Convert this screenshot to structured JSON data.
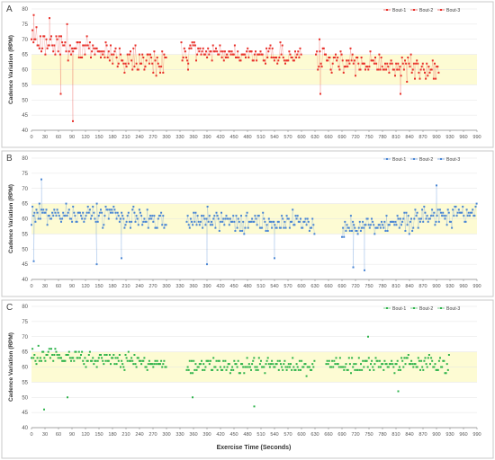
{
  "figure": {
    "shared_xlabel": "Exercise Time (Seconds)",
    "shared_ylabel": "Cadence Variation (RPM)"
  },
  "chart_data": [
    {
      "type": "scatter",
      "panel_label": "A",
      "xlim": [
        0,
        990
      ],
      "ylim": [
        40,
        80
      ],
      "xticks": [
        0,
        30,
        60,
        90,
        120,
        150,
        180,
        210,
        240,
        270,
        300,
        330,
        360,
        390,
        420,
        450,
        480,
        510,
        540,
        570,
        600,
        630,
        660,
        690,
        720,
        750,
        780,
        810,
        840,
        870,
        900,
        930,
        960,
        990
      ],
      "yticks": [
        40,
        45,
        50,
        55,
        60,
        65,
        70,
        75,
        80
      ],
      "band": [
        55,
        65
      ],
      "band_color": "#fdfbd3",
      "connect_points": true,
      "legend": {
        "placement": "top-right",
        "entries": [
          "Bout-1",
          "Bout-2",
          "Bout-3"
        ]
      },
      "series": [
        {
          "name": "Bout-1",
          "color": "#e8302a",
          "x_range": [
            0,
            300
          ],
          "center": 66,
          "spread": 4.5,
          "trend": [
            70,
            62
          ],
          "outliers": [
            [
              5,
              78
            ],
            [
              40,
              77
            ],
            [
              65,
              52
            ],
            [
              92,
              43
            ]
          ]
        },
        {
          "name": "Bout-2",
          "color": "#e8302a",
          "x_range": [
            333,
            600
          ],
          "center": 65,
          "spread": 3.2,
          "trend": [
            66,
            64
          ],
          "outliers": [
            [
              348,
              60
            ]
          ]
        },
        {
          "name": "Bout-3",
          "color": "#e8302a",
          "x_range": [
            632,
            905
          ],
          "center": 62,
          "spread": 3.5,
          "trend": [
            63,
            60
          ],
          "outliers": [
            [
              640,
              70
            ],
            [
              642,
              52
            ],
            [
              820,
              52
            ]
          ]
        }
      ]
    },
    {
      "type": "scatter",
      "panel_label": "B",
      "xlim": [
        0,
        990
      ],
      "ylim": [
        40,
        80
      ],
      "xticks": [
        0,
        30,
        60,
        90,
        120,
        150,
        180,
        210,
        240,
        270,
        300,
        330,
        360,
        390,
        420,
        450,
        480,
        510,
        540,
        570,
        600,
        630,
        660,
        690,
        720,
        750,
        780,
        810,
        840,
        870,
        900,
        930,
        960,
        990
      ],
      "yticks": [
        40,
        45,
        50,
        55,
        60,
        65,
        70,
        75,
        80
      ],
      "band": [
        55,
        65
      ],
      "band_color": "#fdfbd3",
      "connect_points": true,
      "legend": {
        "placement": "top-right",
        "entries": [
          "Bout-1",
          "Bout-2",
          "Bout-3"
        ]
      },
      "series": [
        {
          "name": "Bout-1",
          "color": "#4a86d4",
          "x_range": [
            0,
            300
          ],
          "center": 61,
          "spread": 3,
          "trend": [
            62,
            60
          ],
          "outliers": [
            [
              5,
              46
            ],
            [
              22,
              73
            ],
            [
              145,
              45
            ],
            [
              200,
              47
            ]
          ]
        },
        {
          "name": "Bout-2",
          "color": "#4a86d4",
          "x_range": [
            345,
            630
          ],
          "center": 59,
          "spread": 3,
          "trend": [
            60,
            58
          ],
          "outliers": [
            [
              390,
              45
            ],
            [
              540,
              47
            ]
          ]
        },
        {
          "name": "Bout-3",
          "color": "#4a86d4",
          "x_range": [
            690,
            990
          ],
          "center": 59,
          "spread": 3.2,
          "trend": [
            57,
            62
          ],
          "outliers": [
            [
              715,
              44
            ],
            [
              740,
              43
            ],
            [
              900,
              71
            ]
          ]
        }
      ]
    },
    {
      "type": "scatter",
      "panel_label": "C",
      "xlim": [
        0,
        990
      ],
      "ylim": [
        40,
        80
      ],
      "xticks": [
        0,
        30,
        60,
        90,
        120,
        150,
        180,
        210,
        240,
        270,
        300,
        330,
        360,
        390,
        420,
        450,
        480,
        510,
        540,
        570,
        600,
        630,
        660,
        690,
        720,
        750,
        780,
        810,
        840,
        870,
        900,
        930,
        960,
        990
      ],
      "yticks": [
        40,
        45,
        50,
        55,
        60,
        65,
        70,
        75,
        80
      ],
      "band": [
        55,
        65
      ],
      "band_color": "#fdfbd3",
      "connect_points": false,
      "legend": {
        "placement": "top-right",
        "entries": [
          "Bout-1",
          "Bout-2",
          "Bout-3"
        ]
      },
      "series": [
        {
          "name": "Bout-1",
          "color": "#2eb34b",
          "x_range": [
            0,
            300
          ],
          "center": 61,
          "spread": 2.4,
          "trend": [
            64,
            61
          ],
          "outliers": [
            [
              28,
              46
            ],
            [
              80,
              50
            ]
          ]
        },
        {
          "name": "Bout-2",
          "color": "#2eb34b",
          "x_range": [
            345,
            630
          ],
          "center": 60,
          "spread": 2.4,
          "trend": [
            61,
            60
          ],
          "outliers": [
            [
              358,
              50
            ],
            [
              495,
              47
            ]
          ]
        },
        {
          "name": "Bout-3",
          "color": "#2eb34b",
          "x_range": [
            655,
            930
          ],
          "center": 60,
          "spread": 2.6,
          "trend": [
            61,
            61
          ],
          "outliers": [
            [
              748,
              70
            ],
            [
              815,
              52
            ]
          ]
        }
      ]
    }
  ]
}
